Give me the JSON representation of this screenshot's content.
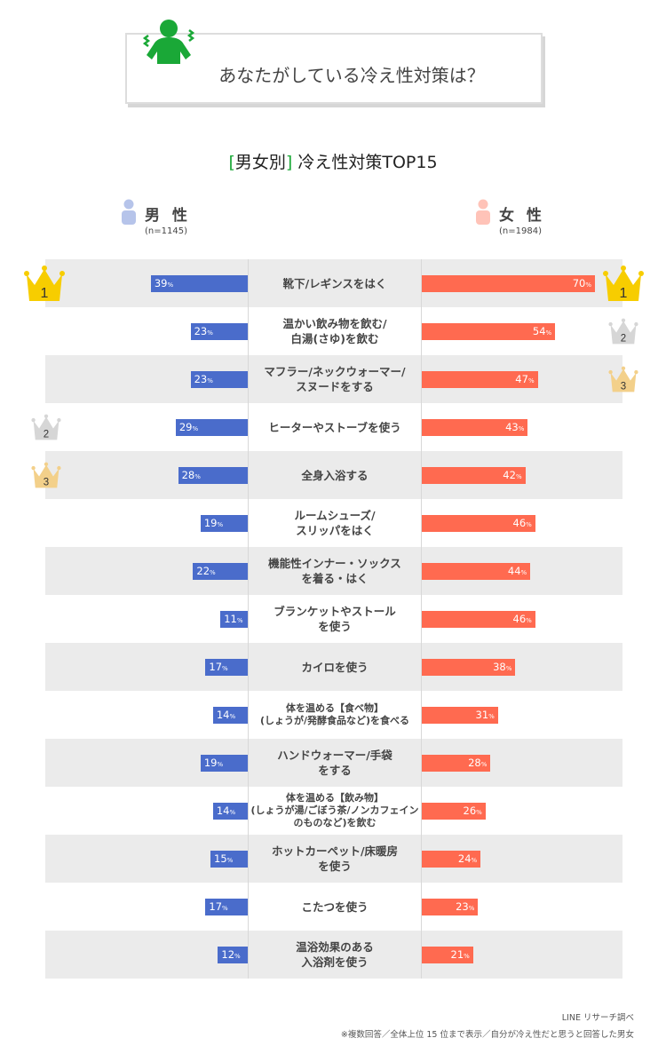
{
  "question": "あなたがしている冷え性対策は？",
  "subtitle": {
    "bracket_open": "[",
    "bracket_text": "男女別",
    "bracket_close": "]",
    "title": " 冷え性対策TOP15"
  },
  "legend": {
    "male": {
      "label": "男 性",
      "n": "(n=1145)"
    },
    "female": {
      "label": "女 性",
      "n": "(n=1984)"
    }
  },
  "colors": {
    "male": "#4a6ccb",
    "female": "#ff6a50",
    "gold": "#f7cd00",
    "silver": "#d6d6d6",
    "bronze": "#f3d08a",
    "accent": "#1aa837"
  },
  "chart_data": {
    "type": "bar",
    "title": "[男女別] 冷え性対策TOP15",
    "unit": "%",
    "categories": [
      "靴下/レギンスをはく",
      "温かい飲み物を飲む/\n白湯(さゆ)を飲む",
      "マフラー/ネックウォーマー/\nスヌードをする",
      "ヒーターやストーブを使う",
      "全身入浴する",
      "ルームシューズ/\nスリッパをはく",
      "機能性インナー・ソックス\nを着る・はく",
      "ブランケットやストール\nを使う",
      "カイロを使う",
      "体を温める【食べ物】\n(しょうが/発酵食品など)を食べる",
      "ハンドウォーマー/手袋\nをする",
      "体を温める【飲み物】\n(しょうが湯/ごぼう茶/ノンカフェイン\nのものなど)を飲む",
      "ホットカーペット/床暖房\nを使う",
      "こたつを使う",
      "温浴効果のある\n入浴剤を使う"
    ],
    "series": [
      {
        "name": "男性",
        "values": [
          39,
          23,
          23,
          29,
          28,
          19,
          22,
          11,
          17,
          14,
          19,
          14,
          15,
          17,
          12
        ]
      },
      {
        "name": "女性",
        "values": [
          70,
          54,
          47,
          43,
          42,
          46,
          44,
          46,
          38,
          31,
          28,
          26,
          24,
          23,
          21
        ]
      }
    ],
    "rank_badges": {
      "male": [
        {
          "row": 0,
          "rank": "1"
        },
        {
          "row": 3,
          "rank": "2"
        },
        {
          "row": 4,
          "rank": "3"
        }
      ],
      "female": [
        {
          "row": 0,
          "rank": "1"
        },
        {
          "row": 1,
          "rank": "2"
        },
        {
          "row": 2,
          "rank": "3"
        }
      ]
    },
    "pct_suffix": "%"
  },
  "footer": {
    "source": "LINE リサーチ調べ",
    "note": "※複数回答／全体上位 15 位まで表示／自分が冷え性だと思うと回答した男女"
  }
}
